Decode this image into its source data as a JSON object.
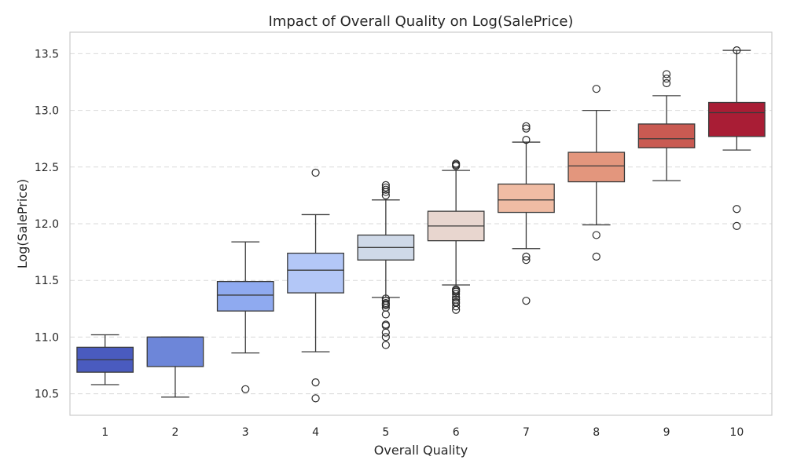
{
  "chart_data": {
    "type": "box",
    "title": "Impact of Overall Quality on Log(SalePrice)",
    "xlabel": "Overall Quality",
    "ylabel": "Log(SalePrice)",
    "ylim": [
      10.31,
      13.69
    ],
    "yticks": [
      10.5,
      11.0,
      11.5,
      12.0,
      12.5,
      13.0,
      13.5
    ],
    "ytick_labels": [
      "10.5",
      "11.0",
      "11.5",
      "12.0",
      "12.5",
      "13.0",
      "13.5"
    ],
    "grid": true,
    "categories": [
      "1",
      "2",
      "3",
      "4",
      "5",
      "6",
      "7",
      "8",
      "9",
      "10"
    ],
    "boxes": [
      {
        "category": "1",
        "whisker_low": 10.58,
        "q1": 10.69,
        "median": 10.8,
        "q3": 10.91,
        "whisker_high": 11.02,
        "outliers": [],
        "color": "#4a5bbf"
      },
      {
        "category": "2",
        "whisker_low": 10.47,
        "q1": 10.74,
        "median": 11.0,
        "q3": 11.0,
        "whisker_high": 11.0,
        "outliers": [],
        "color": "#6d86d9"
      },
      {
        "category": "3",
        "whisker_low": 10.86,
        "q1": 11.23,
        "median": 11.37,
        "q3": 11.49,
        "whisker_high": 11.84,
        "outliers": [
          10.54
        ],
        "color": "#8faaf0"
      },
      {
        "category": "4",
        "whisker_low": 10.87,
        "q1": 11.39,
        "median": 11.59,
        "q3": 11.74,
        "whisker_high": 12.08,
        "outliers": [
          10.46,
          10.6,
          12.45
        ],
        "color": "#b3c7f7"
      },
      {
        "category": "5",
        "whisker_low": 11.35,
        "q1": 11.68,
        "median": 11.79,
        "q3": 11.9,
        "whisker_high": 12.21,
        "outliers": [
          10.93,
          11.0,
          11.04,
          11.1,
          11.11,
          11.2,
          11.26,
          11.28,
          11.29,
          11.3,
          11.32,
          11.34,
          12.25,
          12.28,
          12.3,
          12.32,
          12.34
        ],
        "color": "#cfd9e8"
      },
      {
        "category": "6",
        "whisker_low": 11.46,
        "q1": 11.85,
        "median": 11.98,
        "q3": 12.11,
        "whisker_high": 12.47,
        "outliers": [
          11.24,
          11.27,
          11.3,
          11.31,
          11.33,
          11.35,
          11.38,
          11.4,
          11.41,
          11.42,
          12.51,
          12.52,
          12.53
        ],
        "color": "#e8d6cf"
      },
      {
        "category": "7",
        "whisker_low": 11.78,
        "q1": 12.1,
        "median": 12.21,
        "q3": 12.35,
        "whisker_high": 12.72,
        "outliers": [
          11.32,
          11.68,
          11.71,
          12.74,
          12.84,
          12.86
        ],
        "color": "#f0bca4"
      },
      {
        "category": "8",
        "whisker_low": 11.99,
        "q1": 12.37,
        "median": 12.51,
        "q3": 12.63,
        "whisker_high": 13.0,
        "outliers": [
          11.71,
          11.9,
          13.19
        ],
        "color": "#e3967d"
      },
      {
        "category": "9",
        "whisker_low": 12.38,
        "q1": 12.67,
        "median": 12.75,
        "q3": 12.88,
        "whisker_high": 13.13,
        "outliers": [
          13.24,
          13.28,
          13.32
        ],
        "color": "#c95a52"
      },
      {
        "category": "10",
        "whisker_low": 12.65,
        "q1": 12.77,
        "median": 12.98,
        "q3": 13.07,
        "whisker_high": 13.53,
        "outliers": [
          11.98,
          12.13,
          13.53
        ],
        "color": "#a91d35"
      }
    ]
  }
}
